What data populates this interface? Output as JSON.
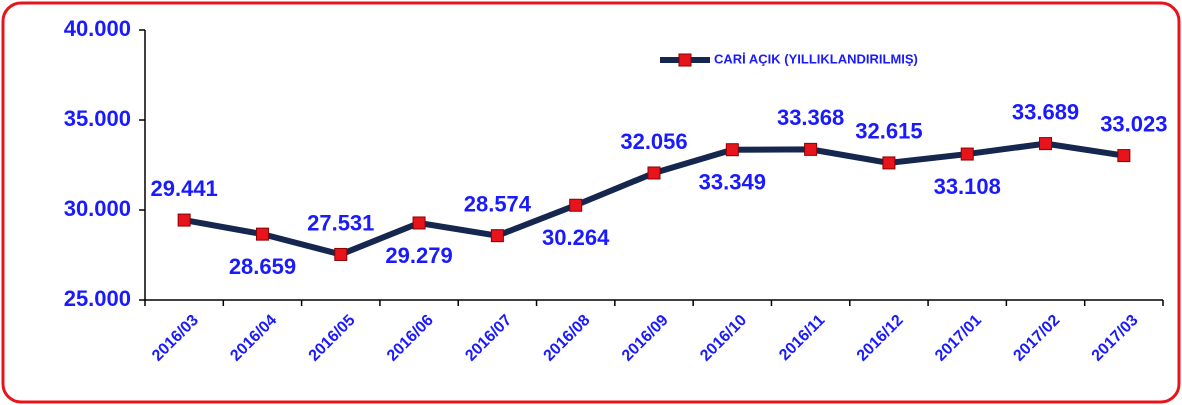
{
  "chart_data": {
    "type": "line",
    "categories": [
      "2016/03",
      "2016/04",
      "2016/05",
      "2016/06",
      "2016/07",
      "2016/08",
      "2016/09",
      "2016/10",
      "2016/11",
      "2016/12",
      "2017/01",
      "2017/02",
      "2017/03"
    ],
    "series": [
      {
        "name": "CARİ AÇIK (YILLIKLANDIRILMIŞ)",
        "color": "#15264f",
        "marker_color": "#e8141b",
        "values": [
          29441,
          28659,
          27531,
          29279,
          28574,
          30264,
          32056,
          33349,
          33368,
          32615,
          33108,
          33689,
          33023
        ],
        "value_labels": [
          "29.441",
          "28.659",
          "27.531",
          "29.279",
          "28.574",
          "30.264",
          "32.056",
          "33.349",
          "33.368",
          "32.615",
          "33.108",
          "33.689",
          "33.023"
        ]
      }
    ],
    "ylim": [
      25000,
      40000
    ],
    "yticks": [
      {
        "value": 25000,
        "label": "25.000"
      },
      {
        "value": 30000,
        "label": "30.000"
      },
      {
        "value": 35000,
        "label": "35.000"
      },
      {
        "value": 40000,
        "label": "40.000"
      }
    ],
    "grid": false,
    "legend": "top"
  }
}
